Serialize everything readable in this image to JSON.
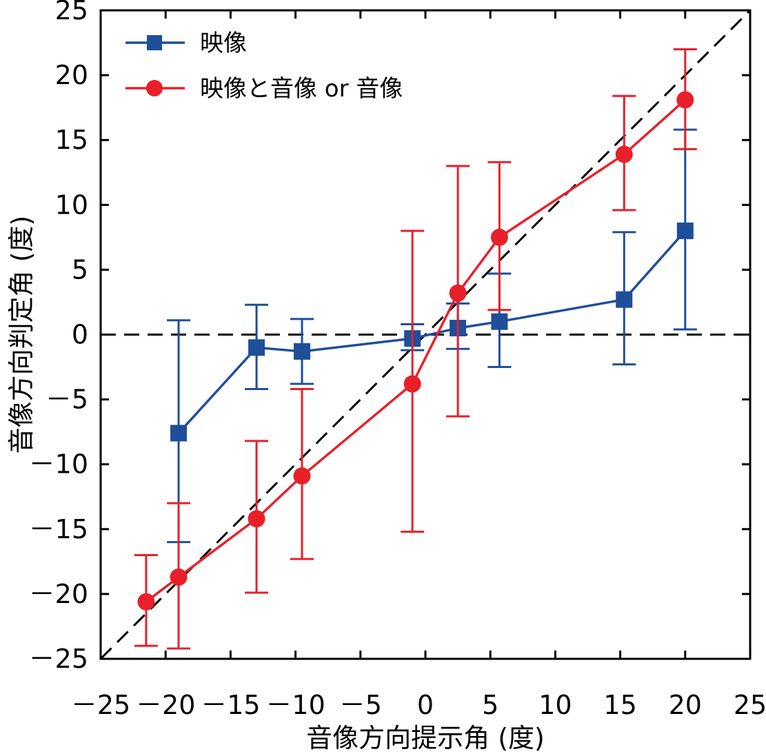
{
  "chart_data": {
    "type": "line",
    "xlabel": "音像方向提示角 (度)",
    "ylabel": "音像方向判定角 (度)",
    "xlim": [
      -25,
      25
    ],
    "ylim": [
      -25,
      25
    ],
    "xticks": [
      -25,
      -20,
      -15,
      -10,
      -5,
      0,
      5,
      10,
      15,
      20,
      25
    ],
    "yticks": [
      -25,
      -20,
      -15,
      -10,
      -5,
      0,
      5,
      10,
      15,
      20,
      25
    ],
    "xtick_labels": [
      "－25",
      "－20",
      "－15",
      "－10",
      "－5",
      "0",
      "5",
      "10",
      "15",
      "20",
      "25"
    ],
    "ytick_labels": [
      "－25",
      "－20",
      "－15",
      "－10",
      "－5",
      "0",
      "5",
      "10",
      "15",
      "20",
      "25"
    ],
    "grid": false,
    "legend_position": "top-left",
    "reference_lines": [
      {
        "kind": "diagonal",
        "points": [
          [
            -25,
            -25
          ],
          [
            25,
            25
          ]
        ],
        "style": "dashed"
      },
      {
        "kind": "horizontal",
        "y": 0,
        "style": "dashed"
      }
    ],
    "series": [
      {
        "name": "映像",
        "color": "#1f4e9a",
        "marker": "square",
        "x": [
          -19,
          -13,
          -9.5,
          -1,
          2.5,
          5.7,
          15.3,
          20
        ],
        "y": [
          -7.6,
          -1,
          -1.3,
          -0.3,
          0.5,
          1,
          2.7,
          8
        ],
        "err_low": [
          -16,
          -4.2,
          -3.8,
          -1.2,
          -1.1,
          -2.5,
          -2.3,
          0.4
        ],
        "err_high": [
          1.1,
          2.3,
          1.2,
          0.8,
          2.4,
          4.7,
          7.9,
          15.8
        ]
      },
      {
        "name": "映像と音像 or 音像",
        "color": "#e8202a",
        "marker": "circle",
        "x": [
          -21.5,
          -19,
          -13,
          -9.5,
          -1,
          2.5,
          5.7,
          15.3,
          20
        ],
        "y": [
          -20.6,
          -18.7,
          -14.2,
          -10.9,
          -3.8,
          3.2,
          7.5,
          13.9,
          18.1
        ],
        "err_low": [
          -24,
          -24.2,
          -19.9,
          -17.3,
          -15.2,
          -6.3,
          1.9,
          9.6,
          14.3
        ],
        "err_high": [
          -17,
          -13,
          -8.2,
          -4.2,
          8,
          13,
          13.3,
          18.4,
          22
        ]
      }
    ]
  }
}
